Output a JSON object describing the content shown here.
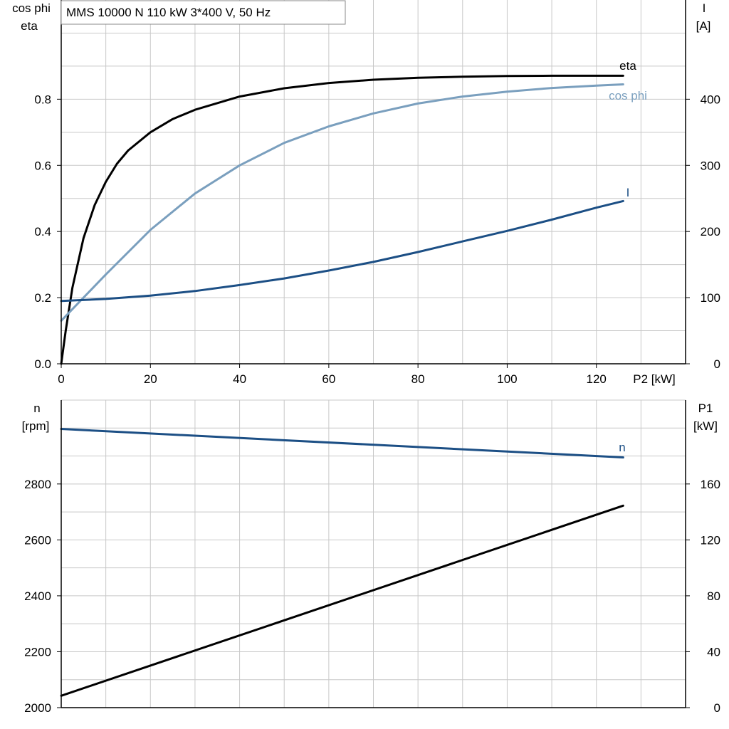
{
  "title": "MMS 10000 N   110 kW   3*400 V, 50 Hz",
  "colors": {
    "eta": "#000000",
    "cos_phi": "#7a9fbe",
    "current": "#1c4f85",
    "speed": "#1c4f85",
    "p1": "#000000",
    "grid": "#c8c8c8"
  },
  "chart_data": [
    {
      "type": "line",
      "xlabel": "P2 [kW]",
      "ylabel_left": [
        "cos phi",
        "eta"
      ],
      "ylabel_right": [
        "I",
        "[A]"
      ],
      "xlim": [
        0,
        140
      ],
      "ylim_left": [
        0,
        1.1
      ],
      "ylim_right": [
        0,
        550
      ],
      "x_ticks": [
        0,
        20,
        40,
        60,
        80,
        100,
        120
      ],
      "y_left_ticks": [
        "0.0",
        "0.2",
        "0.4",
        "0.6",
        "0.8"
      ],
      "y_right_ticks": [
        "0",
        "100",
        "200",
        "300",
        "400"
      ],
      "grid": true,
      "series": [
        {
          "name": "eta",
          "axis": "left",
          "color": "#000000",
          "x": [
            0,
            1,
            2.5,
            5,
            7.5,
            10,
            12.5,
            15,
            20,
            25,
            30,
            40,
            50,
            60,
            70,
            80,
            90,
            100,
            110,
            120,
            126
          ],
          "y": [
            0.0,
            0.1,
            0.23,
            0.38,
            0.48,
            0.55,
            0.605,
            0.645,
            0.7,
            0.74,
            0.768,
            0.808,
            0.833,
            0.849,
            0.859,
            0.865,
            0.868,
            0.87,
            0.871,
            0.871,
            0.871
          ]
        },
        {
          "name": "cos phi",
          "axis": "left",
          "color": "#7a9fbe",
          "x": [
            0,
            5,
            10,
            20,
            30,
            40,
            50,
            60,
            70,
            80,
            90,
            100,
            110,
            120,
            126
          ],
          "y": [
            0.13,
            0.2,
            0.27,
            0.405,
            0.515,
            0.6,
            0.668,
            0.718,
            0.757,
            0.787,
            0.808,
            0.823,
            0.834,
            0.841,
            0.845
          ]
        },
        {
          "name": "I",
          "axis": "right",
          "color": "#1c4f85",
          "x": [
            0,
            10,
            20,
            30,
            40,
            50,
            60,
            70,
            80,
            90,
            100,
            110,
            120,
            126
          ],
          "y": [
            95,
            98,
            103,
            110,
            119,
            129,
            141,
            154,
            169,
            185,
            201,
            218,
            236,
            246
          ]
        }
      ]
    },
    {
      "type": "line",
      "xlabel": "",
      "ylabel_left": [
        "n",
        "[rpm]"
      ],
      "ylabel_right": [
        "P1",
        "[kW]"
      ],
      "xlim": [
        0,
        140
      ],
      "ylim_left": [
        2000,
        3100
      ],
      "ylim_right": [
        0,
        220
      ],
      "y_left_ticks": [
        "2000",
        "2200",
        "2400",
        "2600",
        "2800"
      ],
      "y_right_ticks": [
        "0",
        "40",
        "80",
        "120",
        "160"
      ],
      "grid": true,
      "series": [
        {
          "name": "n",
          "axis": "left",
          "color": "#1c4f85",
          "x": [
            0,
            126
          ],
          "y": [
            2997,
            2895
          ]
        },
        {
          "name": "",
          "axis": "right",
          "color": "#000000",
          "x": [
            0,
            126
          ],
          "y": [
            8.5,
            144.5
          ]
        }
      ]
    }
  ]
}
